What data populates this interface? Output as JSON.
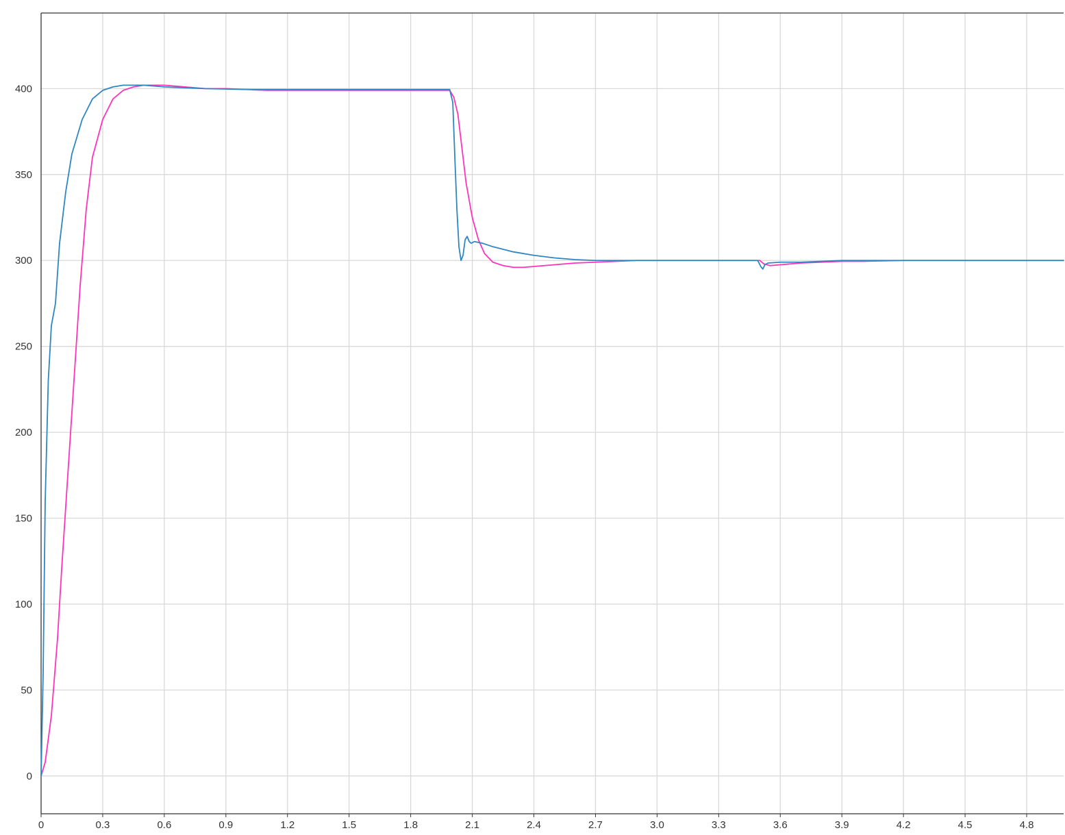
{
  "chart_data": {
    "type": "line",
    "title": "",
    "xlabel": "",
    "ylabel": "",
    "xlim": [
      0,
      4.98
    ],
    "ylim": [
      -22,
      444
    ],
    "grid": true,
    "legend": "none",
    "x_ticks": [
      0,
      0.3,
      0.6,
      0.9,
      1.2,
      1.5,
      1.8,
      2.1,
      2.4,
      2.7,
      3.0,
      3.3,
      3.6,
      3.9,
      4.2,
      4.5,
      4.8
    ],
    "x_tick_labels": [
      "0",
      "0.3",
      "0.6",
      "0.9",
      "1.2",
      "1.5",
      "1.8",
      "2.1",
      "2.4",
      "2.7",
      "3.0",
      "3.3",
      "3.6",
      "3.9",
      "4.2",
      "4.5",
      "4.8"
    ],
    "y_ticks": [
      0,
      50,
      100,
      150,
      200,
      250,
      300,
      350,
      400
    ],
    "y_tick_labels": [
      "0",
      "50",
      "100",
      "150",
      "200",
      "250",
      "300",
      "350",
      "400"
    ],
    "series": [
      {
        "color": "#ff33bb",
        "points": [
          [
            0,
            0
          ],
          [
            0.02,
            8
          ],
          [
            0.05,
            35
          ],
          [
            0.08,
            80
          ],
          [
            0.1,
            120
          ],
          [
            0.13,
            175
          ],
          [
            0.16,
            230
          ],
          [
            0.19,
            285
          ],
          [
            0.22,
            330
          ],
          [
            0.25,
            360
          ],
          [
            0.3,
            382
          ],
          [
            0.35,
            394
          ],
          [
            0.4,
            399
          ],
          [
            0.45,
            401
          ],
          [
            0.5,
            402
          ],
          [
            0.55,
            402
          ],
          [
            0.6,
            402
          ],
          [
            0.7,
            401
          ],
          [
            0.8,
            400
          ],
          [
            0.9,
            400
          ],
          [
            1.0,
            399.5
          ],
          [
            1.1,
            399
          ],
          [
            1.2,
            399
          ],
          [
            1.5,
            399
          ],
          [
            1.8,
            399
          ],
          [
            1.99,
            399
          ],
          [
            2.01,
            395
          ],
          [
            2.03,
            385
          ],
          [
            2.05,
            365
          ],
          [
            2.07,
            345
          ],
          [
            2.1,
            325
          ],
          [
            2.13,
            312
          ],
          [
            2.16,
            304
          ],
          [
            2.2,
            299
          ],
          [
            2.25,
            297
          ],
          [
            2.3,
            296
          ],
          [
            2.35,
            296
          ],
          [
            2.4,
            296.5
          ],
          [
            2.5,
            297.5
          ],
          [
            2.6,
            298.5
          ],
          [
            2.7,
            299
          ],
          [
            2.8,
            299.5
          ],
          [
            2.9,
            300
          ],
          [
            3.0,
            300
          ],
          [
            3.3,
            300
          ],
          [
            3.5,
            300
          ],
          [
            3.52,
            298
          ],
          [
            3.55,
            297
          ],
          [
            3.6,
            297.5
          ],
          [
            3.7,
            298.5
          ],
          [
            3.8,
            299
          ],
          [
            3.9,
            299.5
          ],
          [
            4.0,
            299.5
          ],
          [
            4.2,
            300
          ],
          [
            4.5,
            300
          ],
          [
            4.98,
            300
          ]
        ]
      },
      {
        "color": "#2e86c1",
        "points": [
          [
            0,
            0
          ],
          [
            0.01,
            60
          ],
          [
            0.02,
            160
          ],
          [
            0.035,
            230
          ],
          [
            0.05,
            262
          ],
          [
            0.07,
            275
          ],
          [
            0.09,
            310
          ],
          [
            0.12,
            340
          ],
          [
            0.15,
            362
          ],
          [
            0.2,
            382
          ],
          [
            0.25,
            394
          ],
          [
            0.3,
            399
          ],
          [
            0.35,
            401
          ],
          [
            0.4,
            402
          ],
          [
            0.5,
            402
          ],
          [
            0.6,
            401
          ],
          [
            0.7,
            400.5
          ],
          [
            0.8,
            400
          ],
          [
            1.0,
            399.5
          ],
          [
            1.2,
            399.5
          ],
          [
            1.5,
            399.5
          ],
          [
            1.8,
            399.5
          ],
          [
            1.99,
            399.5
          ],
          [
            2.005,
            392
          ],
          [
            2.015,
            360
          ],
          [
            2.025,
            330
          ],
          [
            2.035,
            308
          ],
          [
            2.045,
            300
          ],
          [
            2.055,
            303
          ],
          [
            2.065,
            312
          ],
          [
            2.075,
            314
          ],
          [
            2.085,
            311
          ],
          [
            2.095,
            310
          ],
          [
            2.11,
            311
          ],
          [
            2.15,
            310
          ],
          [
            2.2,
            308
          ],
          [
            2.3,
            305
          ],
          [
            2.4,
            303
          ],
          [
            2.5,
            301.5
          ],
          [
            2.6,
            300.5
          ],
          [
            2.7,
            300
          ],
          [
            2.8,
            300
          ],
          [
            3.0,
            300
          ],
          [
            3.3,
            300
          ],
          [
            3.49,
            300
          ],
          [
            3.505,
            296.5
          ],
          [
            3.515,
            295
          ],
          [
            3.525,
            297.5
          ],
          [
            3.54,
            298.5
          ],
          [
            3.6,
            299
          ],
          [
            3.7,
            299
          ],
          [
            3.8,
            299.5
          ],
          [
            3.9,
            300
          ],
          [
            4.0,
            300
          ],
          [
            4.5,
            300
          ],
          [
            4.98,
            300
          ]
        ]
      }
    ]
  }
}
